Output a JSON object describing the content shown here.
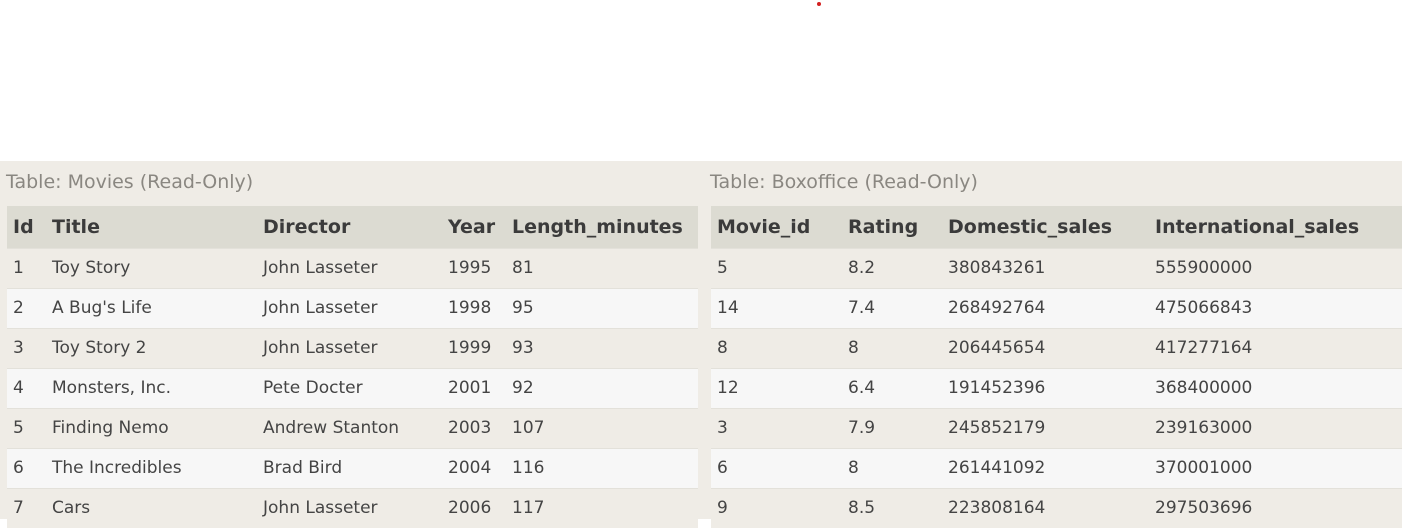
{
  "movies": {
    "caption": "Table: Movies (Read-Only)",
    "columns": [
      "Id",
      "Title",
      "Director",
      "Year",
      "Length_minutes"
    ],
    "rows": [
      [
        "1",
        "Toy Story",
        "John Lasseter",
        "1995",
        "81"
      ],
      [
        "2",
        "A Bug's Life",
        "John Lasseter",
        "1998",
        "95"
      ],
      [
        "3",
        "Toy Story 2",
        "John Lasseter",
        "1999",
        "93"
      ],
      [
        "4",
        "Monsters, Inc.",
        "Pete Docter",
        "2001",
        "92"
      ],
      [
        "5",
        "Finding Nemo",
        "Andrew Stanton",
        "2003",
        "107"
      ],
      [
        "6",
        "The Incredibles",
        "Brad Bird",
        "2004",
        "116"
      ],
      [
        "7",
        "Cars",
        "John Lasseter",
        "2006",
        "117"
      ]
    ]
  },
  "boxoffice": {
    "caption": "Table: Boxoffice (Read-Only)",
    "columns": [
      "Movie_id",
      "Rating",
      "Domestic_sales",
      "International_sales"
    ],
    "rows": [
      [
        "5",
        "8.2",
        "380843261",
        "555900000"
      ],
      [
        "14",
        "7.4",
        "268492764",
        "475066843"
      ],
      [
        "8",
        "8",
        "206445654",
        "417277164"
      ],
      [
        "12",
        "6.4",
        "191452396",
        "368400000"
      ],
      [
        "3",
        "7.9",
        "245852179",
        "239163000"
      ],
      [
        "6",
        "8",
        "261441092",
        "370001000"
      ],
      [
        "9",
        "8.5",
        "223808164",
        "297503696"
      ]
    ]
  }
}
